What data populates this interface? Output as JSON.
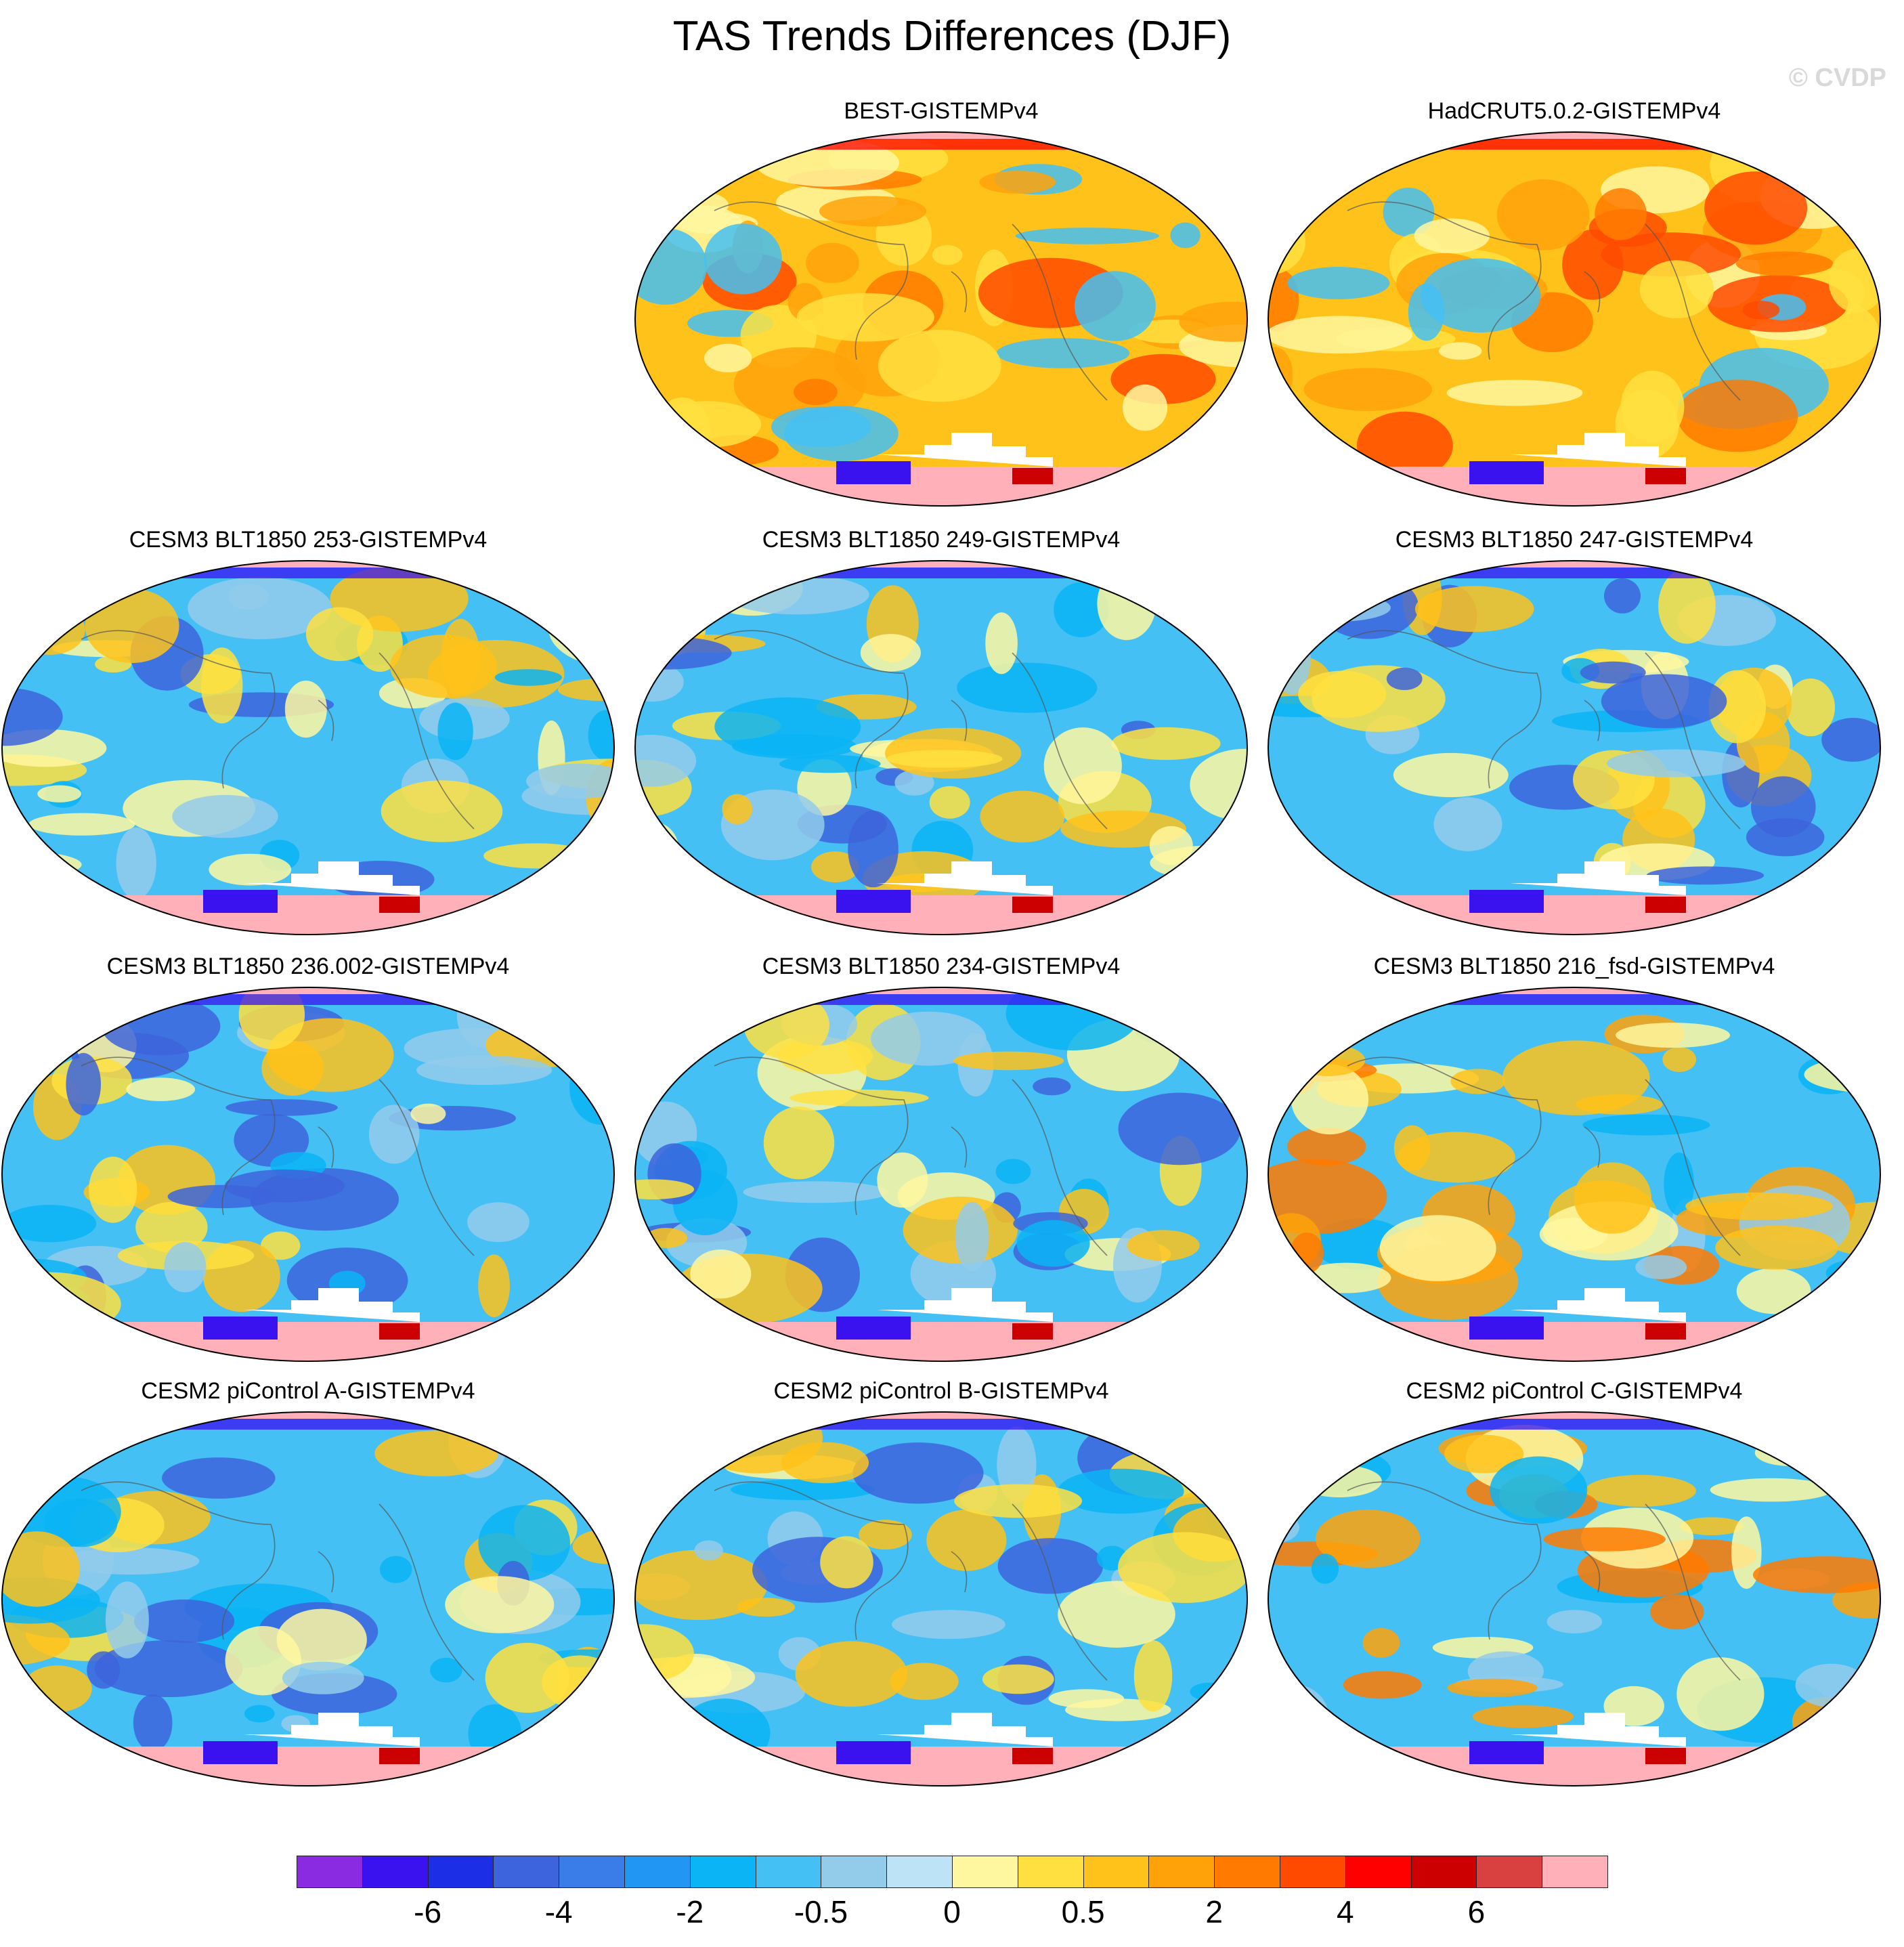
{
  "title": "TAS Trends Differences (DJF)",
  "watermark": "© CVDP",
  "panels": [
    {
      "label": "BEST-GISTEMPv4",
      "slot": 1,
      "pattern": "warm"
    },
    {
      "label": "HadCRUT5.0.2-GISTEMPv4",
      "slot": 2,
      "pattern": "warm"
    },
    {
      "label": "CESM3 BLT1850 253-GISTEMPv4",
      "slot": 3,
      "pattern": "cool"
    },
    {
      "label": "CESM3 BLT1850 249-GISTEMPv4",
      "slot": 4,
      "pattern": "cool"
    },
    {
      "label": "CESM3 BLT1850 247-GISTEMPv4",
      "slot": 5,
      "pattern": "cool"
    },
    {
      "label": "CESM3 BLT1850 236.002-GISTEMPv4",
      "slot": 6,
      "pattern": "cool"
    },
    {
      "label": "CESM3 BLT1850 234-GISTEMPv4",
      "slot": 7,
      "pattern": "cool"
    },
    {
      "label": "CESM3 BLT1850 216_fsd-GISTEMPv4",
      "slot": 8,
      "pattern": "mixed"
    },
    {
      "label": "CESM2 piControl A-GISTEMPv4",
      "slot": 9,
      "pattern": "cool"
    },
    {
      "label": "CESM2 piControl B-GISTEMPv4",
      "slot": 10,
      "pattern": "cool"
    },
    {
      "label": "CESM2 piControl C-GISTEMPv4",
      "slot": 11,
      "pattern": "mixed"
    }
  ],
  "colorbar": {
    "colors": [
      "#8a2be2",
      "#3a12f0",
      "#1c2ee6",
      "#3d64dc",
      "#3a7ce8",
      "#2196f3",
      "#0ab4f5",
      "#44c0f5",
      "#93cbeb",
      "#bde3f6",
      "#fff7a0",
      "#ffe040",
      "#ffc21a",
      "#ffa20a",
      "#ff7a00",
      "#ff4a00",
      "#ff0000",
      "#cc0000",
      "#d94040",
      "#ffb0b8"
    ],
    "tick_labels": [
      "-6",
      "-4",
      "-2",
      "-0.5",
      "0",
      "0.5",
      "2",
      "4",
      "6"
    ],
    "tick_boundaries": [
      2,
      4,
      6,
      8,
      10,
      12,
      14,
      16,
      18
    ]
  }
}
